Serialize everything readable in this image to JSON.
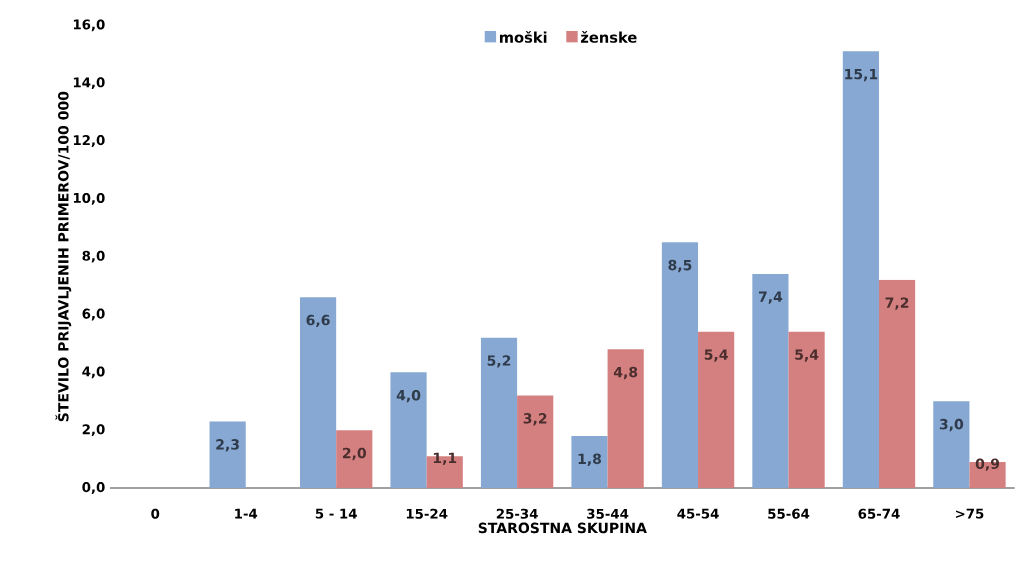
{
  "chart_data": {
    "type": "bar",
    "xlabel": "STAROSTNA SKUPINA",
    "ylabel": "ŠTEVILO PRIJAVLJENIH PRIMEROV/100 000",
    "categories": [
      "0",
      "1-4",
      "5 - 14",
      "15-24",
      "25-34",
      "35-44",
      "45-54",
      "55-64",
      "65-74",
      ">75"
    ],
    "series": [
      {
        "name": "moški",
        "color": "#86a8d3",
        "values": [
          null,
          2.3,
          6.6,
          4.0,
          5.2,
          1.8,
          8.5,
          7.4,
          15.1,
          3.0
        ],
        "value_labels": [
          null,
          "2,3",
          "6,6",
          "4,0",
          "5,2",
          "1,8",
          "8,5",
          "7,4",
          "15,1",
          "3,0"
        ]
      },
      {
        "name": "ženske",
        "color": "#d58080",
        "values": [
          null,
          null,
          2.0,
          1.1,
          3.2,
          4.8,
          5.4,
          5.4,
          7.2,
          0.9
        ],
        "value_labels": [
          null,
          null,
          "2,0",
          "1,1",
          "3,2",
          "4,8",
          "5,4",
          "5,4",
          "7,2",
          "0,9"
        ]
      }
    ],
    "ylim": [
      0,
      16
    ],
    "yticks": [
      {
        "value": 0,
        "label": "0,0"
      },
      {
        "value": 2,
        "label": "2,0"
      },
      {
        "value": 4,
        "label": "4,0"
      },
      {
        "value": 6,
        "label": "6,0"
      },
      {
        "value": 8,
        "label": "8,0"
      },
      {
        "value": 10,
        "label": "10,0"
      },
      {
        "value": 12,
        "label": "12,0"
      },
      {
        "value": 14,
        "label": "14,0"
      },
      {
        "value": 16,
        "label": "16,0"
      }
    ],
    "legend": "top",
    "grid": false
  }
}
